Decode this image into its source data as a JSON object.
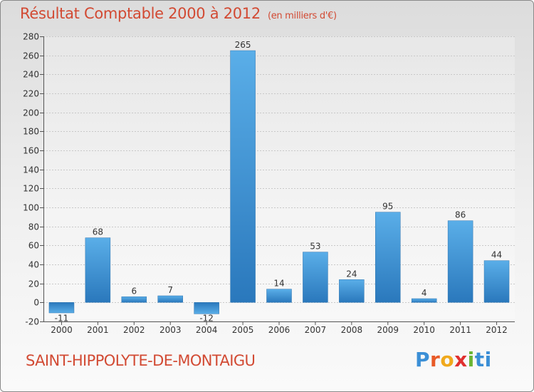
{
  "header": {
    "title": "Résultat Comptable 2000 à 2012",
    "unit": "(en milliers d'€)"
  },
  "footer": {
    "commune": "SAINT-HIPPOLYTE-DE-MONTAIGU",
    "logo": [
      "P",
      "r",
      "o",
      "x",
      "i",
      "t",
      "i"
    ]
  },
  "colors": {
    "title": "#d24a33",
    "bar_top": "#5aaee8",
    "bar_bottom": "#2a78bc"
  },
  "chart_data": {
    "type": "bar",
    "title": "Résultat Comptable 2000 à 2012",
    "subtitle": "(en milliers d'€)",
    "xlabel": "",
    "ylabel": "",
    "categories": [
      "2000",
      "2001",
      "2002",
      "2003",
      "2004",
      "2005",
      "2006",
      "2007",
      "2008",
      "2009",
      "2010",
      "2011",
      "2012"
    ],
    "values": [
      -11,
      68,
      6,
      7,
      -12,
      265,
      14,
      53,
      24,
      95,
      4,
      86,
      44
    ],
    "value_labels": [
      "-11",
      "68",
      "6",
      "7",
      "-12",
      "265",
      "14",
      "53",
      "24",
      "95",
      "4",
      "86",
      "44"
    ],
    "ylim": [
      -20,
      280
    ],
    "yticks": [
      -20,
      0,
      20,
      40,
      60,
      80,
      100,
      120,
      140,
      160,
      180,
      200,
      220,
      240,
      260,
      280
    ],
    "grid": true
  }
}
